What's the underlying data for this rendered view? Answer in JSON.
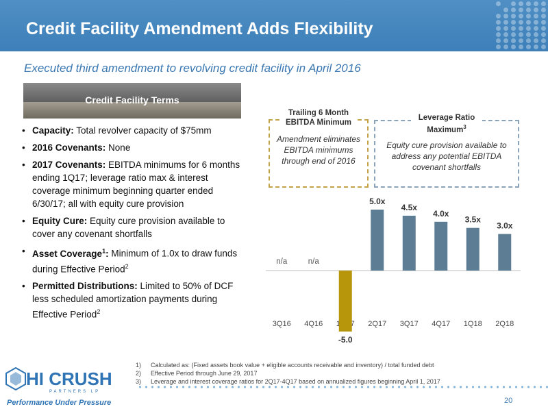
{
  "header": {
    "title": "Credit Facility Amendment Adds Flexibility"
  },
  "subtitle": "Executed third amendment to revolving credit facility in April 2016",
  "terms": {
    "banner_label": "Credit Facility Terms",
    "items": [
      {
        "bold": "Capacity:",
        "text": " Total revolver capacity of $75mm"
      },
      {
        "bold": "2016 Covenants:",
        "text": " None"
      },
      {
        "bold": "2017 Covenants:",
        "text": " EBITDA minimums for 6 months ending 1Q17; leverage ratio max & interest coverage minimum beginning quarter ended 6/30/17; all with equity cure provision"
      },
      {
        "bold": "Equity Cure:",
        "text": " Equity cure provision available to cover any covenant shortfalls"
      },
      {
        "bold": "Asset Coverage",
        "sup": "1",
        "bold_after": ":",
        "text": " Minimum of 1.0x to draw funds during Effective Period",
        "text_sup": "2"
      },
      {
        "bold": "Permitted Distributions:",
        "text": " Limited to 50% of DCF less scheduled amortization payments during Effective Period",
        "text_sup": "2"
      }
    ]
  },
  "ebitda_box": {
    "heading": "Trailing 6 Month EBITDA Minimum",
    "body": "Amendment eliminates EBITDA minimums through end of 2016"
  },
  "leverage_box": {
    "heading": "Leverage Ratio Maximum",
    "heading_sup": "3",
    "body": "Equity cure provision available to address any potential EBITDA covenant shortfalls"
  },
  "chart_data": {
    "type": "bar",
    "categories": [
      "3Q16",
      "4Q16",
      "1Q17",
      "2Q17",
      "3Q17",
      "4Q17",
      "1Q18",
      "2Q18"
    ],
    "values": [
      null,
      null,
      -5.0,
      5.0,
      4.5,
      4.0,
      3.5,
      3.0
    ],
    "data_labels": [
      "n/a",
      "n/a",
      "-5.0",
      "5.0x",
      "4.5x",
      "4.0x",
      "3.5x",
      "3.0x"
    ],
    "colors": {
      "negative": "#b8960c",
      "positive": "#5d7d95",
      "axis": "#bfbfbf"
    },
    "ylim": [
      -5.5,
      5.5
    ],
    "grid": false,
    "title": "",
    "xlabel": "",
    "ylabel": ""
  },
  "footnotes": [
    {
      "num": "1)",
      "text": "Calculated as: (Fixed assets book value + eligible accounts receivable and inventory) / total funded debt"
    },
    {
      "num": "2)",
      "text": "Effective Period through June 29, 2017"
    },
    {
      "num": "3)",
      "text": "Leverage and interest coverage ratios for 2Q17-4Q17 based on annualized figures beginning April 1, 2017"
    }
  ],
  "logo": {
    "word": "HI CRUSH",
    "sub": "PARTNERS LP",
    "tagline": "Performance Under Pressure",
    "color": "#2f74b5"
  },
  "page_number": "20"
}
